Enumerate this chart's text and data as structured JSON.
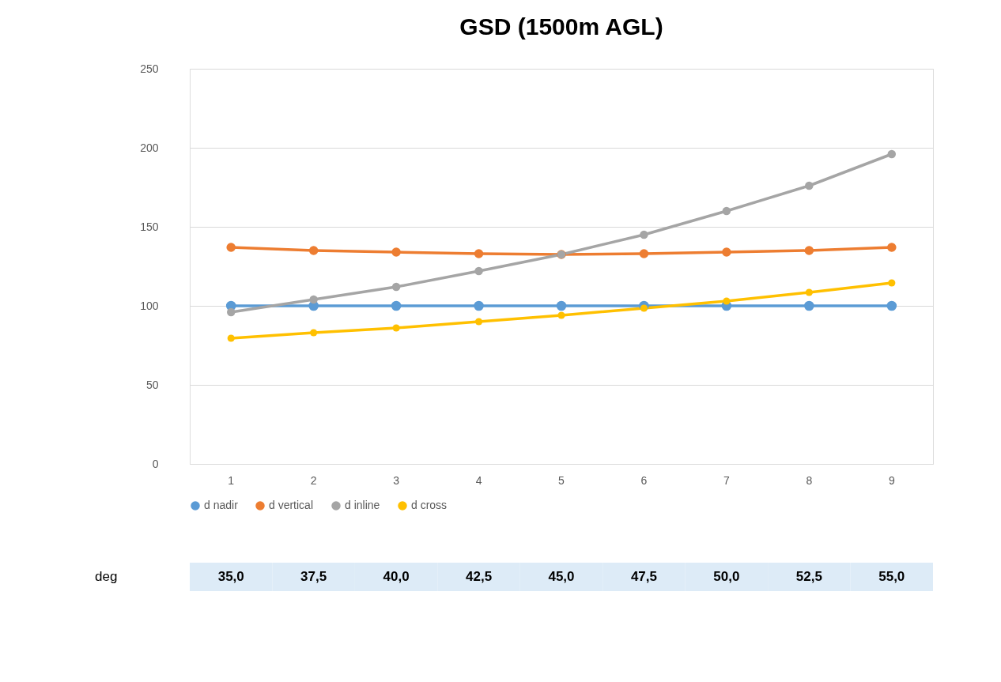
{
  "chart_data": {
    "type": "line",
    "title": "GSD (1500m AGL)",
    "categories": [
      "1",
      "2",
      "3",
      "4",
      "5",
      "6",
      "7",
      "8",
      "9"
    ],
    "series": [
      {
        "name": "d nadir",
        "color": "#5b9bd5",
        "values": [
          100,
          100,
          100,
          100,
          100,
          100,
          100,
          100,
          100
        ]
      },
      {
        "name": "d vertical",
        "color": "#ed7d31",
        "values": [
          137,
          135,
          134,
          133,
          132.5,
          133,
          134,
          135,
          137
        ]
      },
      {
        "name": "d inline",
        "color": "#a5a5a5",
        "values": [
          96,
          104,
          112,
          122,
          132.5,
          145,
          160,
          176,
          196
        ]
      },
      {
        "name": "d cross",
        "color": "#ffc000",
        "values": [
          79.5,
          83,
          86,
          90,
          94,
          98.5,
          103,
          108.5,
          114.5
        ]
      }
    ],
    "ylim": [
      0,
      250
    ],
    "yticks": [
      0,
      50,
      100,
      150,
      200,
      250
    ],
    "grid": "y",
    "legend": "bottom",
    "marker": "circle",
    "line_style": "solid",
    "annotations": [
      "deg",
      "35,0",
      "37,5",
      "40,0",
      "42,5",
      "45,0",
      "47,5",
      "50,0",
      "52,5",
      "55,0"
    ]
  }
}
